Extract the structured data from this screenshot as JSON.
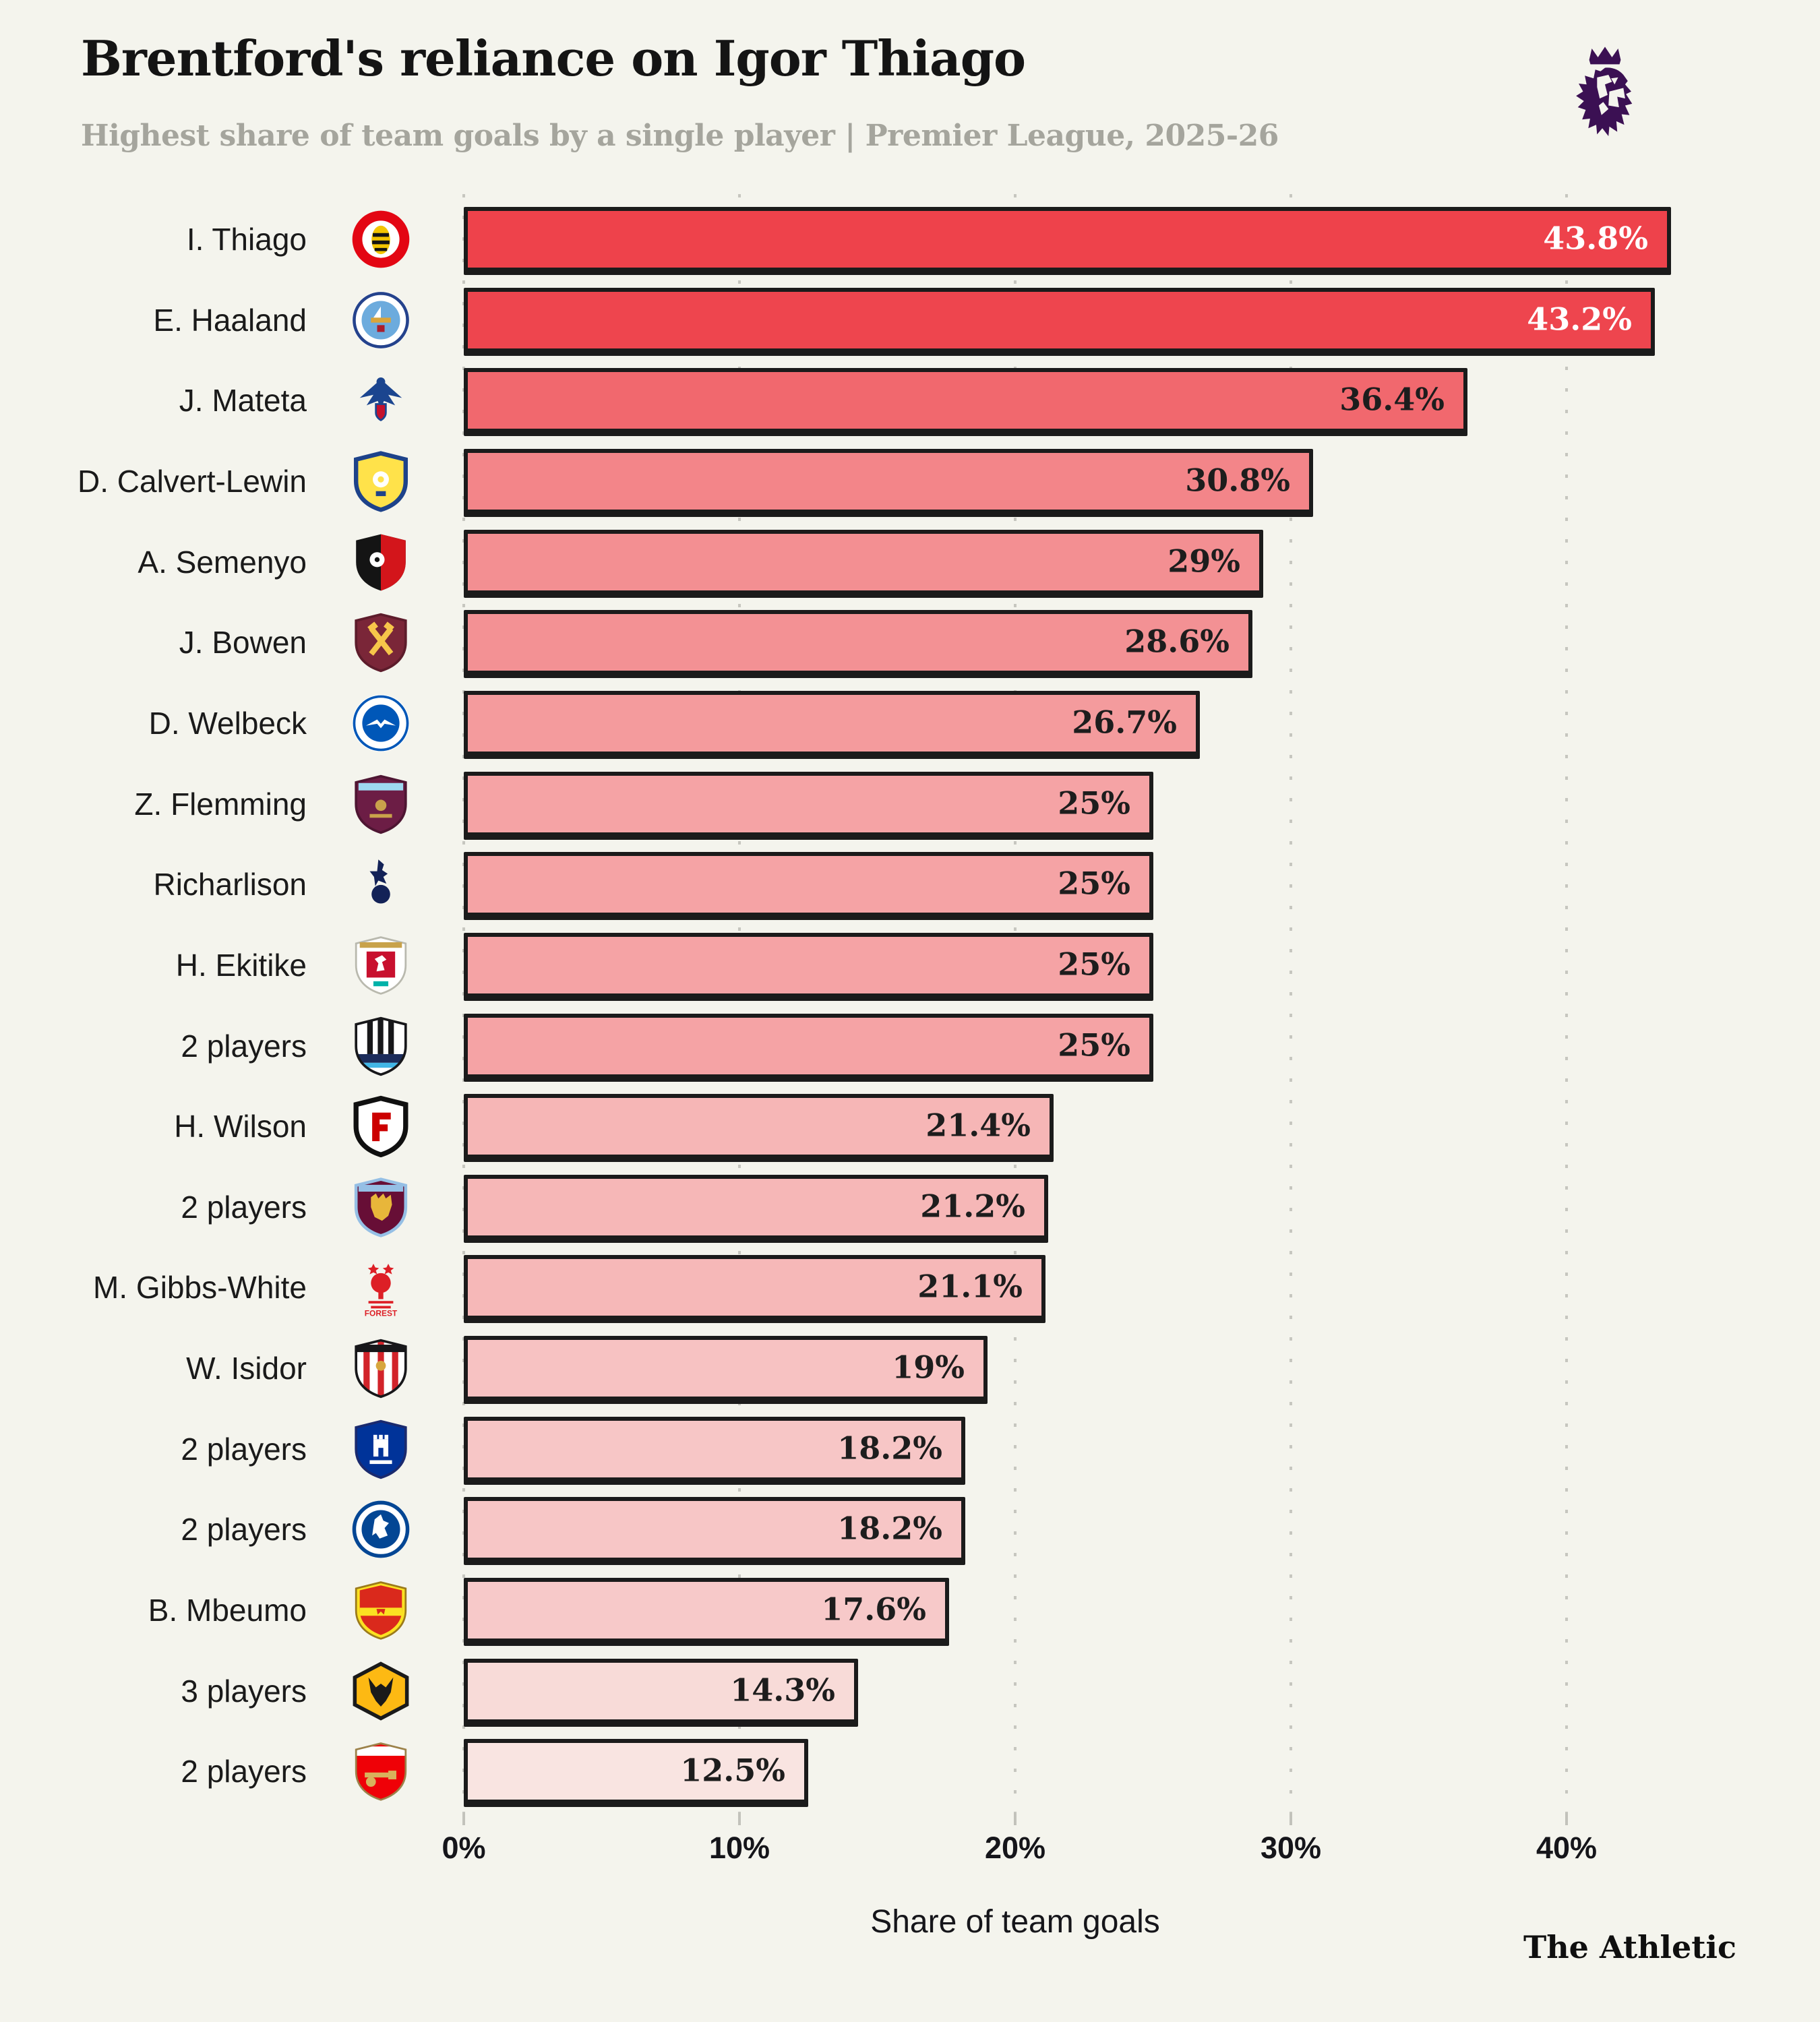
{
  "header": {
    "title": "Brentford's reliance on Igor Thiago",
    "subtitle": "Highest share of team goals by a single player | Premier League, 2025-26",
    "logo": "premier-league-lion-logo"
  },
  "footer": {
    "brand": "The Athletic"
  },
  "colors": {
    "background": "#f4f4ed",
    "accent_dark": "#ee424b",
    "accent_light": "#f9e4e1",
    "bar_border": "#1b1b1b",
    "premier_league_purple": "#3b1053",
    "subtitle_gray": "#a5a59d"
  },
  "chart_data": {
    "type": "bar",
    "orientation": "horizontal",
    "title": "Brentford's reliance on Igor Thiago",
    "subtitle": "Highest share of team goals by a single player | Premier League, 2025-26",
    "xlabel": "Share of team goals",
    "ylabel": "",
    "xlim": [
      0,
      45
    ],
    "grid": "dotted-vertical",
    "legend": "none",
    "x_ticks": [
      {
        "label": "0%",
        "value": 0
      },
      {
        "label": "10%",
        "value": 10
      },
      {
        "label": "20%",
        "value": 20
      },
      {
        "label": "30%",
        "value": 30
      },
      {
        "label": "40%",
        "value": 40
      }
    ],
    "rows": [
      {
        "rank": 1,
        "player": "I. Thiago",
        "club": "Brentford",
        "badge": "brentford",
        "value": 43.8,
        "value_label": "43.8%",
        "bar_color": "#ee424b",
        "value_color": "#ffffff"
      },
      {
        "rank": 2,
        "player": "E. Haaland",
        "club": "Manchester City",
        "badge": "man-city",
        "value": 43.2,
        "value_label": "43.2%",
        "bar_color": "#ee454e",
        "value_color": "#ffffff"
      },
      {
        "rank": 3,
        "player": "J. Mateta",
        "club": "Crystal Palace",
        "badge": "crystal-palace",
        "value": 36.4,
        "value_label": "36.4%",
        "bar_color": "#f1686e",
        "value_color": "#1d1d1d"
      },
      {
        "rank": 4,
        "player": "D. Calvert-Lewin",
        "club": "Leeds United",
        "badge": "leeds",
        "value": 30.8,
        "value_label": "30.8%",
        "bar_color": "#f38589",
        "value_color": "#1d1d1d"
      },
      {
        "rank": 5,
        "player": "A. Semenyo",
        "club": "Bournemouth",
        "badge": "bournemouth",
        "value": 29,
        "value_label": "29%",
        "bar_color": "#f38f92",
        "value_color": "#1d1d1d"
      },
      {
        "rank": 6,
        "player": "J. Bowen",
        "club": "West Ham United",
        "badge": "west-ham",
        "value": 28.6,
        "value_label": "28.6%",
        "bar_color": "#f39194",
        "value_color": "#1d1d1d"
      },
      {
        "rank": 7,
        "player": "D. Welbeck",
        "club": "Brighton & Hove Albion",
        "badge": "brighton",
        "value": 26.7,
        "value_label": "26.7%",
        "bar_color": "#f49b9d",
        "value_color": "#1d1d1d"
      },
      {
        "rank": 8,
        "player": "Z. Flemming",
        "club": "Burnley",
        "badge": "burnley",
        "value": 25,
        "value_label": "25%",
        "bar_color": "#f5a3a5",
        "value_color": "#1d1d1d"
      },
      {
        "rank": 9,
        "player": "Richarlison",
        "club": "Tottenham Hotspur",
        "badge": "tottenham",
        "value": 25,
        "value_label": "25%",
        "bar_color": "#f5a3a5",
        "value_color": "#1d1d1d"
      },
      {
        "rank": 10,
        "player": "H. Ekitike",
        "club": "Liverpool",
        "badge": "liverpool",
        "value": 25,
        "value_label": "25%",
        "bar_color": "#f5a3a5",
        "value_color": "#1d1d1d"
      },
      {
        "rank": 11,
        "player": "2 players",
        "club": "Newcastle United",
        "badge": "newcastle",
        "value": 25,
        "value_label": "25%",
        "bar_color": "#f5a3a5",
        "value_color": "#1d1d1d"
      },
      {
        "rank": 12,
        "player": "H. Wilson",
        "club": "Fulham",
        "badge": "fulham",
        "value": 21.4,
        "value_label": "21.4%",
        "bar_color": "#f6b6b6",
        "value_color": "#1d1d1d"
      },
      {
        "rank": 13,
        "player": "2 players",
        "club": "Aston Villa",
        "badge": "aston-villa",
        "value": 21.2,
        "value_label": "21.2%",
        "bar_color": "#f6b7b7",
        "value_color": "#1d1d1d"
      },
      {
        "rank": 14,
        "player": "M. Gibbs-White",
        "club": "Nottingham Forest",
        "badge": "nottingham-forest",
        "value": 21.1,
        "value_label": "21.1%",
        "bar_color": "#f6b8b8",
        "value_color": "#1d1d1d"
      },
      {
        "rank": 15,
        "player": "W. Isidor",
        "club": "Sunderland",
        "badge": "sunderland",
        "value": 19,
        "value_label": "19%",
        "bar_color": "#f7c2c2",
        "value_color": "#1d1d1d"
      },
      {
        "rank": 16,
        "player": "2 players",
        "club": "Everton",
        "badge": "everton",
        "value": 18.2,
        "value_label": "18.2%",
        "bar_color": "#f7c6c6",
        "value_color": "#1d1d1d"
      },
      {
        "rank": 17,
        "player": "2 players",
        "club": "Chelsea",
        "badge": "chelsea",
        "value": 18.2,
        "value_label": "18.2%",
        "bar_color": "#f7c6c6",
        "value_color": "#1d1d1d"
      },
      {
        "rank": 18,
        "player": "B. Mbeumo",
        "club": "Manchester United",
        "badge": "man-united",
        "value": 17.6,
        "value_label": "17.6%",
        "bar_color": "#f7c9c9",
        "value_color": "#1d1d1d"
      },
      {
        "rank": 19,
        "player": "3 players",
        "club": "Wolverhampton Wanderers",
        "badge": "wolves",
        "value": 14.3,
        "value_label": "14.3%",
        "bar_color": "#f8dbd8",
        "value_color": "#1d1d1d"
      },
      {
        "rank": 20,
        "player": "2 players",
        "club": "Arsenal",
        "badge": "arsenal",
        "value": 12.5,
        "value_label": "12.5%",
        "bar_color": "#f9e4e1",
        "value_color": "#1d1d1d"
      }
    ]
  }
}
